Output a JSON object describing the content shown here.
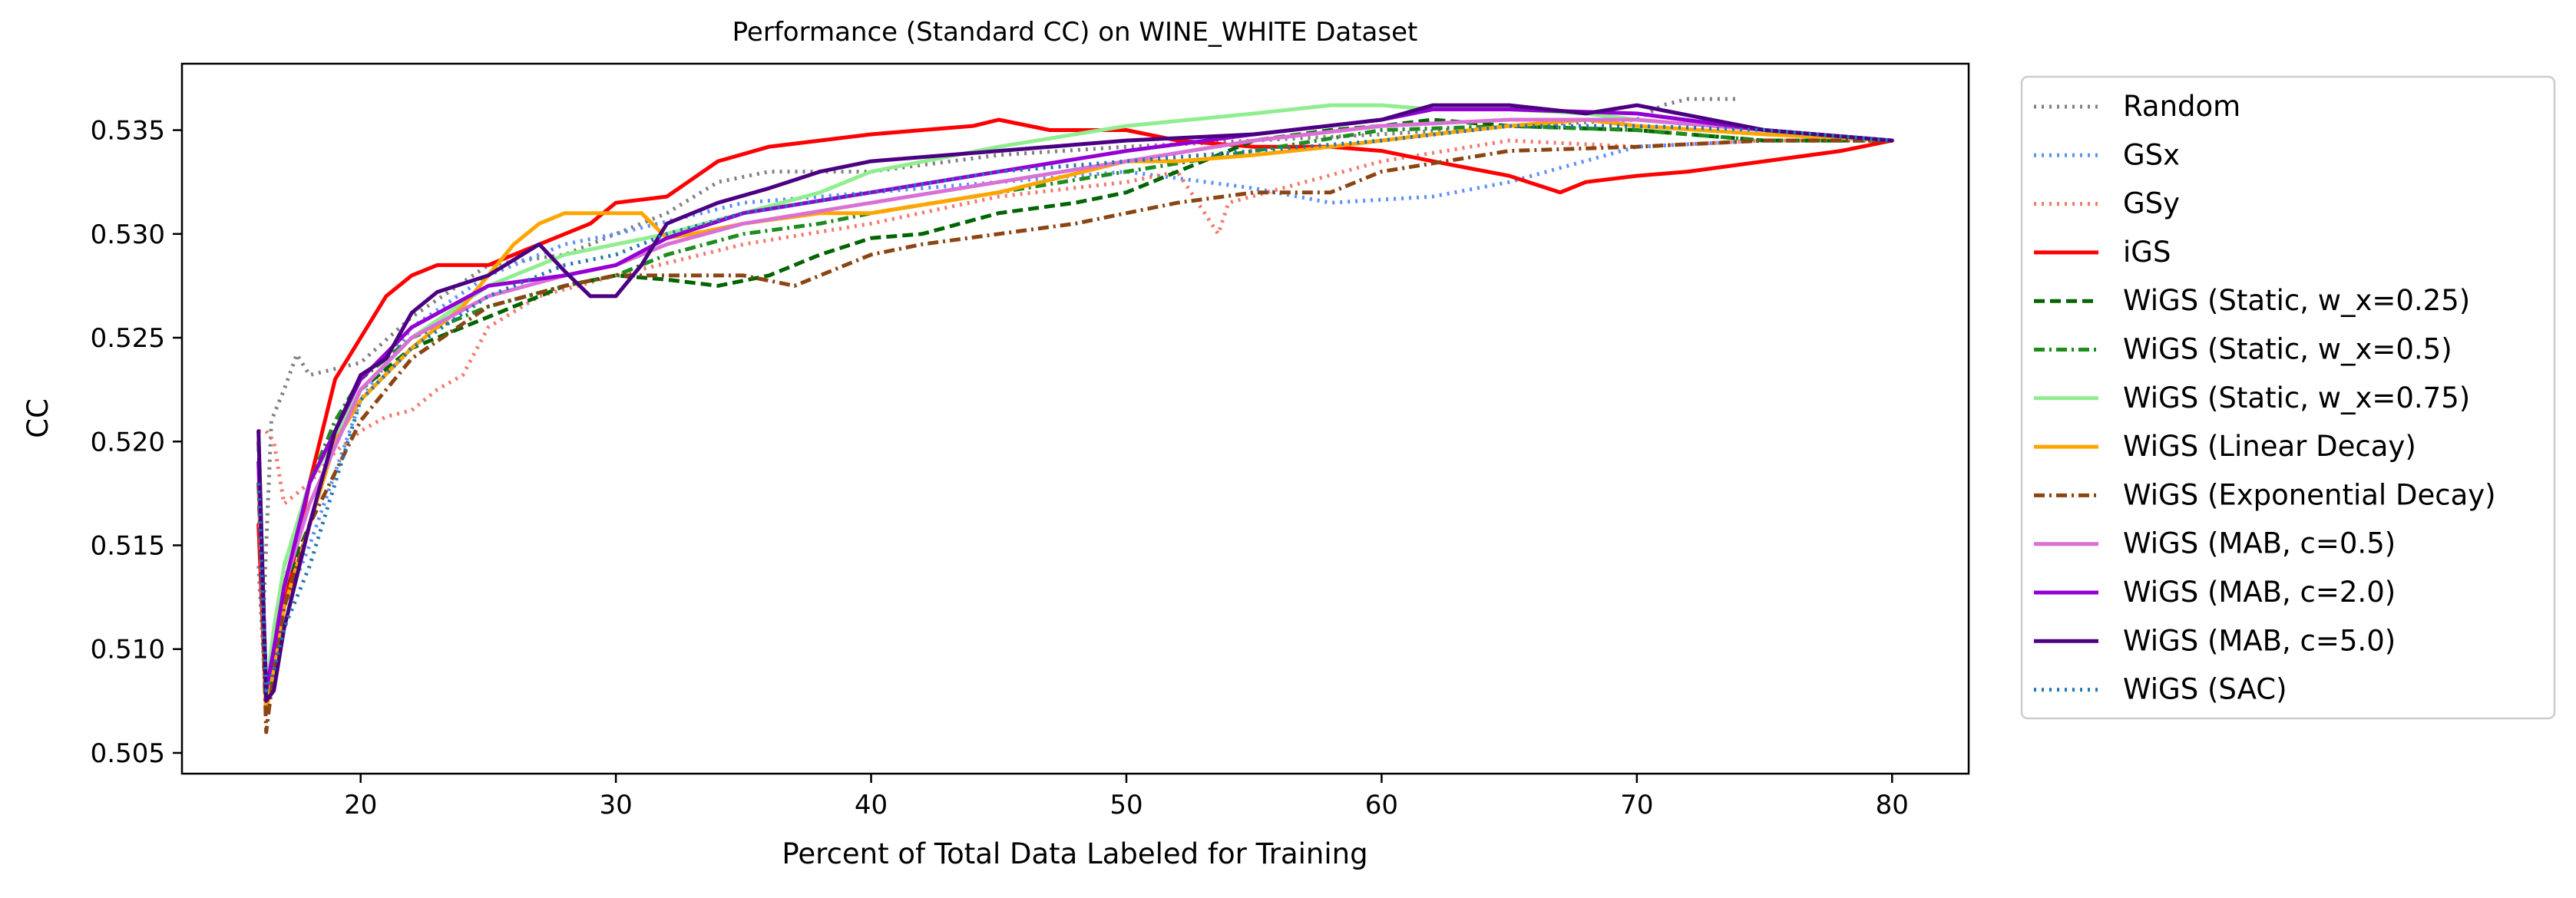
{
  "chart_data": {
    "type": "line",
    "title": "Performance (Standard CC) on WINE_WHITE Dataset",
    "xlabel": "Percent of Total Data Labeled for Training",
    "ylabel": "CC",
    "xlim": [
      13,
      83
    ],
    "ylim": [
      0.504,
      0.5382
    ],
    "xticks": [
      20,
      30,
      40,
      50,
      60,
      70,
      80
    ],
    "xtick_labels": [
      "20",
      "30",
      "40",
      "50",
      "60",
      "70",
      "80"
    ],
    "yticks": [
      0.505,
      0.51,
      0.515,
      0.52,
      0.525,
      0.53,
      0.535
    ],
    "ytick_labels": [
      "0.505",
      "0.510",
      "0.515",
      "0.520",
      "0.525",
      "0.530",
      "0.535"
    ],
    "grid": false,
    "legend": "outside right",
    "series": [
      {
        "name": "Random",
        "color": "#808080",
        "dash": "dotted",
        "x": [
          16,
          16.2,
          16.5,
          17,
          17.5,
          18,
          20,
          22,
          25,
          28,
          30,
          32,
          34,
          36,
          40,
          45,
          50,
          55,
          60,
          65,
          70,
          71,
          72,
          74
        ],
        "y": [
          0.5205,
          0.512,
          0.521,
          0.5225,
          0.5242,
          0.5232,
          0.5238,
          0.526,
          0.5285,
          0.529,
          0.53,
          0.531,
          0.5325,
          0.533,
          0.533,
          0.5338,
          0.5342,
          0.5345,
          0.5348,
          0.5352,
          0.5355,
          0.5362,
          0.5365,
          0.5365
        ]
      },
      {
        "name": "GSx",
        "color": "#5b8ff9",
        "dash": "dotted",
        "x": [
          16,
          16.3,
          16.6,
          17,
          18,
          20,
          22,
          25,
          28,
          30,
          35,
          40,
          45,
          50,
          55,
          58,
          62,
          65,
          70,
          75,
          80
        ],
        "y": [
          0.514,
          0.507,
          0.51,
          0.512,
          0.515,
          0.522,
          0.5255,
          0.528,
          0.5295,
          0.53,
          0.5315,
          0.532,
          0.5325,
          0.533,
          0.5322,
          0.5315,
          0.5318,
          0.5325,
          0.5342,
          0.5345,
          0.5345
        ]
      },
      {
        "name": "GSy",
        "color": "#f4776b",
        "dash": "dotted",
        "x": [
          16,
          16.3,
          16.6,
          17,
          18,
          19,
          20,
          21,
          22,
          23,
          24,
          25,
          27,
          30,
          35,
          40,
          45,
          50,
          52,
          53.6,
          54,
          57,
          60,
          65,
          70,
          75,
          80
        ],
        "y": [
          0.5205,
          0.5205,
          0.52,
          0.517,
          0.518,
          0.5195,
          0.5205,
          0.5212,
          0.5215,
          0.5225,
          0.5232,
          0.5255,
          0.527,
          0.528,
          0.5295,
          0.5305,
          0.5318,
          0.5325,
          0.533,
          0.53,
          0.5315,
          0.5325,
          0.5335,
          0.5345,
          0.5342,
          0.5345,
          0.5345
        ]
      },
      {
        "name": "iGS",
        "color": "#ff0000",
        "dash": "solid",
        "x": [
          16,
          16.3,
          16.6,
          17,
          18,
          19,
          20,
          21,
          22,
          23,
          25,
          27,
          29,
          30,
          32,
          34,
          36,
          38,
          40,
          42,
          44,
          45,
          47,
          50,
          52,
          55,
          58,
          60,
          62,
          65,
          67,
          68,
          70,
          72,
          75,
          78,
          80
        ],
        "y": [
          0.516,
          0.507,
          0.51,
          0.512,
          0.518,
          0.523,
          0.525,
          0.527,
          0.528,
          0.5285,
          0.5285,
          0.5295,
          0.5305,
          0.5315,
          0.5318,
          0.5335,
          0.5342,
          0.5345,
          0.5348,
          0.535,
          0.5352,
          0.5355,
          0.535,
          0.535,
          0.5345,
          0.5342,
          0.5342,
          0.534,
          0.5335,
          0.5328,
          0.532,
          0.5325,
          0.5328,
          0.533,
          0.5335,
          0.534,
          0.5345
        ]
      },
      {
        "name": "WiGS (Static, w_x=0.25)",
        "color": "#006400",
        "dash": "dashed",
        "x": [
          16,
          16.3,
          16.6,
          17,
          18,
          19,
          20,
          22,
          25,
          28,
          30,
          32,
          34,
          36,
          38,
          40,
          42,
          45,
          48,
          50,
          52,
          55,
          58,
          60,
          62,
          65,
          70,
          75,
          80
        ],
        "y": [
          0.52,
          0.508,
          0.51,
          0.513,
          0.516,
          0.52,
          0.5225,
          0.5245,
          0.526,
          0.5275,
          0.528,
          0.5278,
          0.5275,
          0.528,
          0.529,
          0.5298,
          0.53,
          0.531,
          0.5315,
          0.532,
          0.533,
          0.5345,
          0.535,
          0.5352,
          0.5355,
          0.5352,
          0.535,
          0.5345,
          0.5345
        ]
      },
      {
        "name": "WiGS (Static, w_x=0.5)",
        "color": "#1e8c1e",
        "dash": "dashdot",
        "x": [
          16,
          16.3,
          16.6,
          17,
          18,
          19,
          20,
          22,
          25,
          28,
          30,
          32,
          35,
          38,
          40,
          45,
          50,
          55,
          60,
          65,
          70,
          75,
          80
        ],
        "y": [
          0.518,
          0.508,
          0.51,
          0.514,
          0.518,
          0.521,
          0.523,
          0.525,
          0.5265,
          0.5275,
          0.528,
          0.529,
          0.53,
          0.5305,
          0.531,
          0.532,
          0.533,
          0.534,
          0.535,
          0.5352,
          0.535,
          0.5345,
          0.5345
        ]
      },
      {
        "name": "WiGS (Static, w_x=0.75)",
        "color": "#90ee90",
        "dash": "solid",
        "x": [
          16,
          16.3,
          16.6,
          17,
          18,
          20,
          22,
          25,
          28,
          30,
          32,
          35,
          38,
          40,
          45,
          50,
          55,
          58,
          60,
          62,
          65,
          68,
          70,
          75,
          80
        ],
        "y": [
          0.518,
          0.508,
          0.511,
          0.514,
          0.518,
          0.5225,
          0.525,
          0.5275,
          0.529,
          0.5295,
          0.53,
          0.531,
          0.532,
          0.533,
          0.5342,
          0.5352,
          0.5358,
          0.5362,
          0.5362,
          0.536,
          0.536,
          0.5358,
          0.5355,
          0.535,
          0.5345
        ]
      },
      {
        "name": "WiGS (Linear Decay)",
        "color": "#ffa500",
        "dash": "solid",
        "x": [
          16,
          16.3,
          16.6,
          17,
          18,
          19,
          20,
          22,
          24,
          25,
          26,
          27,
          28,
          30,
          31,
          32,
          33,
          35,
          38,
          40,
          45,
          50,
          52,
          55,
          58,
          60,
          62,
          65,
          68,
          70,
          75,
          80
        ],
        "y": [
          0.518,
          0.507,
          0.509,
          0.512,
          0.516,
          0.52,
          0.522,
          0.5245,
          0.5265,
          0.528,
          0.5295,
          0.5305,
          0.531,
          0.531,
          0.531,
          0.5298,
          0.53,
          0.5305,
          0.531,
          0.531,
          0.532,
          0.5335,
          0.5335,
          0.5338,
          0.5342,
          0.5345,
          0.5348,
          0.5352,
          0.5355,
          0.5352,
          0.5348,
          0.5345
        ]
      },
      {
        "name": "WiGS (Exponential Decay)",
        "color": "#8b4513",
        "dash": "dashdot",
        "x": [
          16,
          16.3,
          16.6,
          17,
          18,
          20,
          22,
          25,
          28,
          30,
          32,
          35,
          37,
          40,
          42,
          45,
          48,
          50,
          52,
          55,
          58,
          60,
          65,
          70,
          75,
          80
        ],
        "y": [
          0.518,
          0.506,
          0.509,
          0.512,
          0.516,
          0.521,
          0.524,
          0.5265,
          0.5275,
          0.528,
          0.528,
          0.528,
          0.5275,
          0.529,
          0.5295,
          0.53,
          0.5305,
          0.531,
          0.5315,
          0.532,
          0.532,
          0.533,
          0.534,
          0.5342,
          0.5345,
          0.5345
        ]
      },
      {
        "name": "WiGS (MAB, c=0.5)",
        "color": "#da70d6",
        "dash": "solid",
        "x": [
          16,
          16.3,
          16.6,
          17,
          18,
          20,
          22,
          25,
          28,
          30,
          32,
          35,
          40,
          45,
          50,
          55,
          60,
          65,
          70,
          75,
          80
        ],
        "y": [
          0.519,
          0.508,
          0.51,
          0.513,
          0.517,
          0.5225,
          0.525,
          0.527,
          0.528,
          0.5285,
          0.5295,
          0.5305,
          0.5315,
          0.5325,
          0.5335,
          0.5345,
          0.5352,
          0.5355,
          0.5355,
          0.535,
          0.5345
        ]
      },
      {
        "name": "WiGS (MAB, c=2.0)",
        "color": "#9400d3",
        "dash": "solid",
        "x": [
          16,
          16.3,
          16.6,
          17,
          18,
          20,
          22,
          25,
          28,
          30,
          32,
          35,
          40,
          45,
          50,
          55,
          60,
          62,
          65,
          70,
          75,
          80
        ],
        "y": [
          0.519,
          0.508,
          0.51,
          0.513,
          0.518,
          0.523,
          0.5255,
          0.5275,
          0.528,
          0.5285,
          0.5298,
          0.531,
          0.532,
          0.533,
          0.534,
          0.5348,
          0.5355,
          0.536,
          0.536,
          0.5358,
          0.535,
          0.5345
        ]
      },
      {
        "name": "WiGS (MAB, c=5.0)",
        "color": "#4b0082",
        "dash": "solid",
        "x": [
          16,
          16.3,
          16.6,
          17,
          18,
          19,
          20,
          21,
          22,
          23,
          25,
          27,
          28,
          29,
          30,
          31,
          32,
          34,
          36,
          38,
          40,
          45,
          50,
          55,
          60,
          62,
          65,
          68,
          70,
          75,
          80
        ],
        "y": [
          0.5205,
          0.5075,
          0.508,
          0.511,
          0.516,
          0.5205,
          0.5232,
          0.524,
          0.5262,
          0.5272,
          0.528,
          0.5295,
          0.5282,
          0.527,
          0.527,
          0.5285,
          0.5305,
          0.5315,
          0.5322,
          0.533,
          0.5335,
          0.534,
          0.5345,
          0.5348,
          0.5355,
          0.5362,
          0.5362,
          0.5358,
          0.5362,
          0.535,
          0.5345
        ]
      },
      {
        "name": "WiGS (SAC)",
        "color": "#1f77b4",
        "dash": "dotted",
        "x": [
          16,
          16.3,
          16.6,
          17,
          18,
          19,
          20,
          22,
          25,
          28,
          30,
          32,
          35,
          40,
          45,
          50,
          55,
          60,
          65,
          70,
          75,
          80
        ],
        "y": [
          0.518,
          0.508,
          0.509,
          0.511,
          0.514,
          0.518,
          0.522,
          0.5245,
          0.527,
          0.5285,
          0.529,
          0.53,
          0.531,
          0.532,
          0.533,
          0.5335,
          0.534,
          0.5345,
          0.5352,
          0.5352,
          0.535,
          0.5345
        ]
      }
    ]
  }
}
